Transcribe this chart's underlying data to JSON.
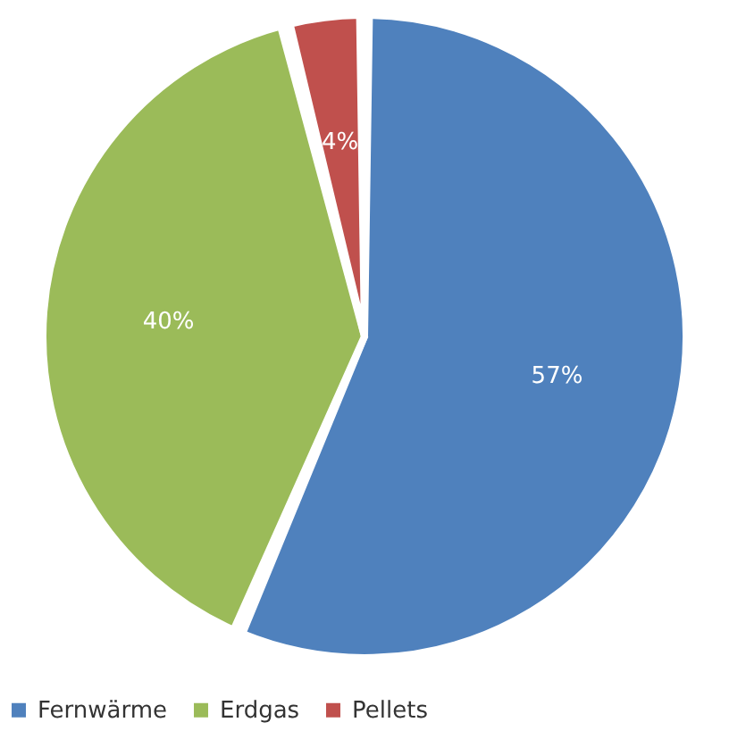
{
  "chart_data": {
    "type": "pie",
    "categories": [
      "Fernwärme",
      "Erdgas",
      "Pellets"
    ],
    "values": [
      57,
      40,
      4
    ],
    "colors": [
      "#4f81bd",
      "#9bbb59",
      "#c0504d"
    ],
    "value_labels": [
      "57%",
      "40%",
      "4%"
    ],
    "legend": "bottom"
  }
}
